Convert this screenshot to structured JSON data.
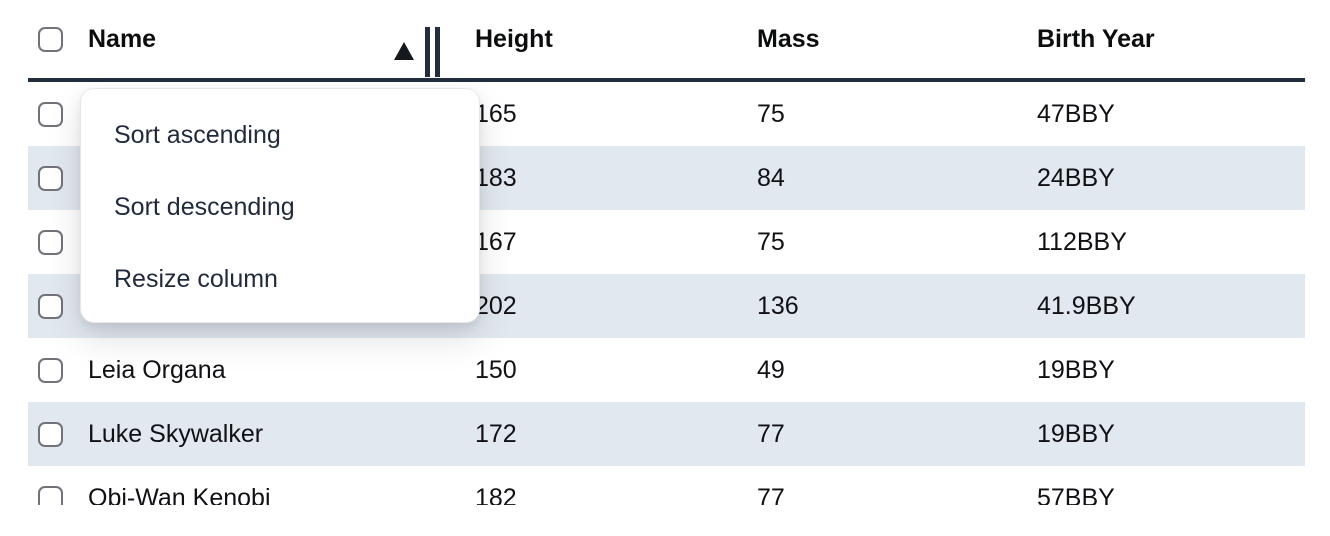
{
  "header": {
    "columns": [
      {
        "key": "name",
        "label": "Name",
        "sorted": "ascending"
      },
      {
        "key": "height",
        "label": "Height",
        "sorted": null
      },
      {
        "key": "mass",
        "label": "Mass",
        "sorted": null
      },
      {
        "key": "birth_year",
        "label": "Birth Year",
        "sorted": null
      }
    ],
    "sort_indicator": "ascending-triangle-icon",
    "resize_grip": "double-bar-grip-icon"
  },
  "rows": [
    {
      "name": "",
      "height": "165",
      "mass": "75",
      "birth_year": "47BBY",
      "shaded": false,
      "checked": false
    },
    {
      "name": "",
      "height": "183",
      "mass": "84",
      "birth_year": "24BBY",
      "shaded": true,
      "checked": false
    },
    {
      "name": "",
      "height": "167",
      "mass": "75",
      "birth_year": "112BBY",
      "shaded": false,
      "checked": false
    },
    {
      "name": "",
      "height": "202",
      "mass": "136",
      "birth_year": "41.9BBY",
      "shaded": true,
      "checked": false
    },
    {
      "name": "Leia Organa",
      "height": "150",
      "mass": "49",
      "birth_year": "19BBY",
      "shaded": false,
      "checked": false
    },
    {
      "name": "Luke Skywalker",
      "height": "172",
      "mass": "77",
      "birth_year": "19BBY",
      "shaded": true,
      "checked": false
    },
    {
      "name": "Obi-Wan Kenobi",
      "height": "182",
      "mass": "77",
      "birth_year": "57BBY",
      "shaded": false,
      "checked": false
    }
  ],
  "context_menu": {
    "items": [
      "Sort ascending",
      "Sort descending",
      "Resize column"
    ]
  },
  "colors": {
    "header_border": "#222e3e",
    "row_stripe": "#e2e8f0",
    "text": "#101114",
    "menu_text": "#1f2a3c",
    "checkbox_border": "#72727a"
  }
}
